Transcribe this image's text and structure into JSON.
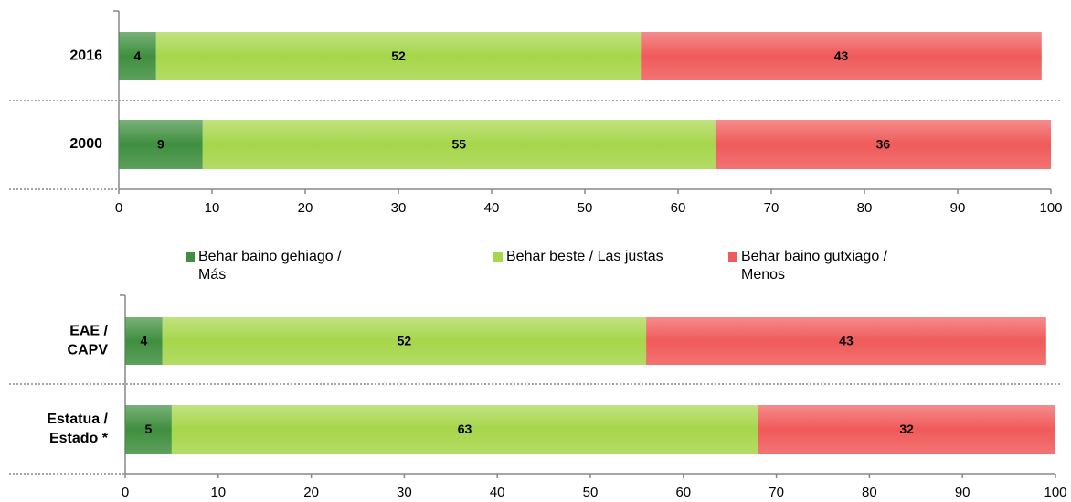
{
  "chart_data": [
    {
      "type": "bar",
      "orientation": "horizontal",
      "stacked": true,
      "categories": [
        "2016",
        "2000"
      ],
      "series": [
        {
          "name": "Behar baino gehiago / Más",
          "color": "#3f8f3f",
          "values": [
            4,
            9
          ]
        },
        {
          "name": "Behar beste / Las justas",
          "color": "#a6d64a",
          "values": [
            52,
            55
          ]
        },
        {
          "name": "Behar baino gutxiago / Menos",
          "color": "#f05a5a",
          "values": [
            43,
            36
          ]
        }
      ],
      "xlim": [
        0,
        100
      ],
      "xticks": [
        0,
        10,
        20,
        30,
        40,
        50,
        60,
        70,
        80,
        90,
        100
      ],
      "grid": false
    },
    {
      "type": "bar",
      "orientation": "horizontal",
      "stacked": true,
      "categories": [
        "EAE / CAPV",
        "Estatua / Estado *"
      ],
      "series": [
        {
          "color": "#3f8f3f",
          "values": [
            4,
            5
          ]
        },
        {
          "color": "#a6d64a",
          "values": [
            52,
            63
          ]
        },
        {
          "color": "#f05a5a",
          "values": [
            43,
            32
          ]
        }
      ],
      "xlim": [
        0,
        100
      ],
      "xticks": [
        0,
        10,
        20,
        30,
        40,
        50,
        60,
        70,
        80,
        90,
        100
      ],
      "grid": false
    }
  ]
}
